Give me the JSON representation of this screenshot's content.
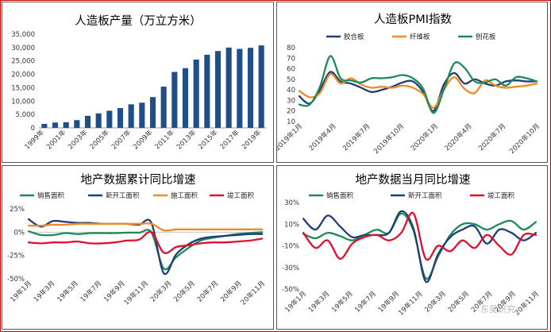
{
  "chart_data": [
    {
      "type": "bar",
      "title": "人造板产量（万立方米）",
      "categories": [
        "1999年",
        "2000年",
        "2001年",
        "2002年",
        "2003年",
        "2004年",
        "2005年",
        "2006年",
        "2007年",
        "2008年",
        "2009年",
        "2010年",
        "2011年",
        "2012年",
        "2013年",
        "2014年",
        "2015年",
        "2016年",
        "2017年",
        "2018年",
        "2019年"
      ],
      "x_tick_labels": [
        "1999年",
        "2001年",
        "2003年",
        "2005年",
        "2007年",
        "2009年",
        "2011年",
        "2013年",
        "2015年",
        "2017年",
        "2019年"
      ],
      "values": [
        1500,
        2000,
        2100,
        2900,
        4500,
        5400,
        6400,
        7400,
        8800,
        9400,
        11500,
        15400,
        20900,
        22300,
        25500,
        27300,
        28700,
        30000,
        29500,
        29900,
        30800
      ],
      "ylim": [
        0,
        35000
      ],
      "yticks": [
        0,
        5000,
        10000,
        15000,
        20000,
        25000,
        30000,
        35000
      ],
      "ytick_labels": [
        "0",
        "5,000",
        "10,000",
        "15,000",
        "20,000",
        "25,000",
        "30,000",
        "35,000"
      ],
      "color": "#1f4e88"
    },
    {
      "type": "line",
      "title": "人造板PMI指数",
      "x_tick_labels": [
        "2019年1月",
        "2019年4月",
        "2019年7月",
        "2019年10月",
        "2020年1月",
        "2020年4月",
        "2020年7月",
        "2020年10月"
      ],
      "ylim": [
        10,
        80
      ],
      "yticks": [
        10,
        20,
        30,
        40,
        50,
        60,
        70,
        80
      ],
      "series": [
        {
          "name": "胶合板",
          "color": "#1f3f77",
          "values": [
            34,
            27,
            40,
            57,
            48,
            46,
            42,
            38,
            40,
            43,
            47,
            48,
            38,
            20,
            45,
            56,
            46,
            50,
            46,
            44,
            48,
            49,
            48,
            48
          ]
        },
        {
          "name": "纤维板",
          "color": "#f08a25",
          "values": [
            39,
            33,
            37,
            55,
            46,
            51,
            45,
            42,
            43,
            42,
            44,
            42,
            36,
            23,
            40,
            52,
            41,
            37,
            49,
            44,
            42,
            43,
            44,
            46
          ]
        },
        {
          "name": "刨花板",
          "color": "#1e8a5a",
          "values": [
            26,
            26,
            43,
            72,
            51,
            49,
            47,
            51,
            51,
            52,
            54,
            51,
            41,
            18,
            40,
            65,
            61,
            48,
            47,
            50,
            44,
            52,
            51,
            48
          ]
        }
      ]
    },
    {
      "type": "line",
      "title": "地产数据累计同比增速",
      "x_tick_labels": [
        "19年1月",
        "19年3月",
        "19年5月",
        "19年7月",
        "19年9月",
        "19年11月",
        "20年3月",
        "20年5月",
        "20年7月",
        "20年9月",
        "20年11月"
      ],
      "ylim": [
        -50,
        25
      ],
      "yticks": [
        25,
        0,
        -25,
        -50
      ],
      "ytick_labels": [
        "25%",
        "0%",
        "-25%",
        "-50%"
      ],
      "series": [
        {
          "name": "销售面积",
          "color": "#1e8a5a",
          "values": [
            1,
            -3,
            -3,
            -1,
            -2,
            -1,
            -1,
            -1,
            -0.5,
            -0.5,
            -0.2,
            -39,
            -27,
            -17,
            -9,
            -6,
            -4,
            -2,
            -1,
            0
          ]
        },
        {
          "name": "新开工面积",
          "color": "#1f3f77",
          "values": [
            14,
            6,
            12,
            11,
            10,
            10,
            9,
            9,
            9,
            8,
            10,
            -44,
            -24,
            -13,
            -7,
            -5,
            -4,
            -3,
            -2,
            -2
          ]
        },
        {
          "name": "施工面积",
          "color": "#f08a25",
          "values": [
            7,
            7,
            8,
            8,
            9,
            9,
            9,
            9,
            9,
            9,
            9,
            2,
            3,
            3,
            3,
            3,
            3,
            3,
            3,
            3
          ]
        },
        {
          "name": "竣工面积",
          "color": "#e0102f",
          "values": [
            -11,
            -12,
            -11,
            -11,
            -10,
            -12,
            -12,
            -11,
            -9,
            -8,
            0,
            -22,
            -16,
            -14,
            -12,
            -11,
            -11,
            -10,
            -9,
            -7
          ]
        }
      ]
    },
    {
      "type": "line",
      "title": "地产数据当月同比增速",
      "x_tick_labels": [
        "19年1月",
        "19年3月",
        "19年5月",
        "19年7月",
        "19年9月",
        "19年11月",
        "20年3月",
        "20年5月",
        "20年7月",
        "20年9月",
        "20年11月"
      ],
      "ylim": [
        -50,
        30
      ],
      "yticks": [
        30,
        10,
        -10,
        -30,
        -50
      ],
      "ytick_labels": [
        "30%",
        "10%",
        "-10%",
        "-30%",
        "-50%"
      ],
      "series": [
        {
          "name": "销售面积",
          "color": "#1e8a5a",
          "values": [
            1,
            -3,
            2,
            -1,
            -5,
            0,
            5,
            2,
            20,
            4,
            -40,
            -20,
            0,
            10,
            10,
            5,
            10,
            13,
            5,
            12
          ]
        },
        {
          "name": "新开工面积",
          "color": "#1f3f77",
          "values": [
            15,
            5,
            18,
            8,
            -2,
            0,
            0,
            2,
            22,
            6,
            -43,
            -18,
            -2,
            5,
            8,
            -8,
            5,
            2,
            -5,
            2
          ]
        },
        {
          "name": "竣工面积",
          "color": "#e0102f",
          "values": [
            2,
            -12,
            -5,
            -22,
            -8,
            -2,
            0,
            -5,
            2,
            20,
            -22,
            -10,
            -15,
            -5,
            -12,
            0,
            -10,
            -18,
            0,
            0
          ]
        }
      ]
    }
  ],
  "watermark": "东吴研究"
}
